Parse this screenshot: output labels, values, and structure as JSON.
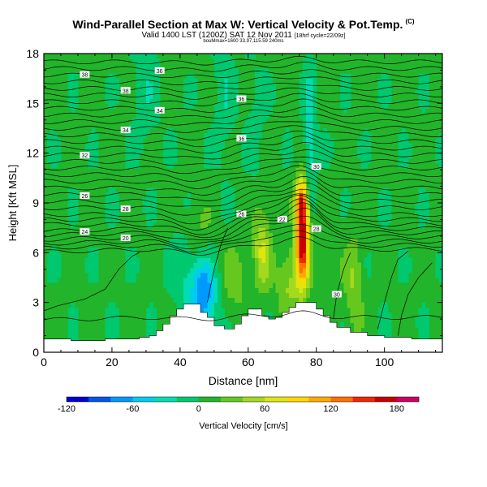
{
  "header": {
    "title": "Wind-Parallel Section at Max W: Vertical Velocity & Pot.Temp.",
    "copyright": "(C)",
    "subtitle": "Valid 1400 LST (1200Z) SAT 12 Nov 2011",
    "subtitle_small": "[18hrf cycle=22/09z]",
    "info": "bouMmax=1600 33.97,115.59 240ms"
  },
  "chart_data": {
    "type": "heatmap",
    "xlabel": "Distance [nm]",
    "ylabel": "Height [Kft MSL]",
    "xlim": [
      0,
      117
    ],
    "ylim": [
      0,
      18
    ],
    "xticks": [
      0,
      20,
      40,
      60,
      80,
      100
    ],
    "yticks": [
      0,
      3,
      6,
      9,
      12,
      15,
      18
    ],
    "colorbar": {
      "label": "Vertical Velocity [cm/s]",
      "ticks": [
        -120,
        -60,
        0,
        60,
        120,
        180
      ],
      "range": [
        -120,
        200
      ],
      "colors": [
        "#0000cc",
        "#0055ee",
        "#0099ff",
        "#00ccee",
        "#00dcb4",
        "#00c86e",
        "#22b42a",
        "#66c81e",
        "#a6d81e",
        "#dee60e",
        "#ffd800",
        "#ffaa00",
        "#ff7000",
        "#f02800",
        "#c80000",
        "#cc0066"
      ]
    },
    "background_value": 5,
    "terrain": [
      [
        0,
        0.8
      ],
      [
        8,
        0.7
      ],
      [
        18,
        0.8
      ],
      [
        28,
        0.9
      ],
      [
        31,
        1.0
      ],
      [
        33,
        1.3
      ],
      [
        35,
        1.7
      ],
      [
        37,
        2.2
      ],
      [
        39,
        2.6
      ],
      [
        41,
        2.9
      ],
      [
        44,
        2.9
      ],
      [
        46,
        2.4
      ],
      [
        48,
        2.1
      ],
      [
        50,
        1.6
      ],
      [
        53,
        1.4
      ],
      [
        56,
        1.7
      ],
      [
        58,
        2.2
      ],
      [
        60,
        2.6
      ],
      [
        62,
        2.6
      ],
      [
        64,
        2.2
      ],
      [
        66,
        2.0
      ],
      [
        68,
        2.1
      ],
      [
        70,
        2.4
      ],
      [
        72,
        2.7
      ],
      [
        74,
        3.0
      ],
      [
        78,
        3.0
      ],
      [
        80,
        2.6
      ],
      [
        82,
        2.2
      ],
      [
        84,
        1.8
      ],
      [
        86,
        1.5
      ],
      [
        90,
        1.2
      ],
      [
        95,
        1.0
      ],
      [
        100,
        0.9
      ],
      [
        108,
        0.8
      ],
      [
        117,
        0.7
      ]
    ],
    "updrafts": [
      {
        "x": 76,
        "y": 7.0,
        "sx": 1.4,
        "sy": 2.0,
        "v": 180
      },
      {
        "x": 75.5,
        "y": 9.2,
        "sx": 1.2,
        "sy": 0.8,
        "v": 70
      },
      {
        "x": 64,
        "y": 6.2,
        "sx": 1.8,
        "sy": 1.7,
        "v": 55
      },
      {
        "x": 72,
        "y": 4.2,
        "sx": 2.5,
        "sy": 1.4,
        "v": 40
      },
      {
        "x": 45,
        "y": 7.0,
        "sx": 3.0,
        "sy": 1.4,
        "v": 25
      },
      {
        "x": 56,
        "y": 4.4,
        "sx": 2.5,
        "sy": 1.5,
        "v": 25
      },
      {
        "x": 91,
        "y": 4.2,
        "sx": 1.8,
        "sy": 2.2,
        "v": 35
      },
      {
        "x": 84,
        "y": 5.0,
        "sx": 2.0,
        "sy": 1.5,
        "v": 20
      }
    ],
    "downdrafts": [
      {
        "x": 47,
        "y": 3.4,
        "sx": 2.5,
        "sy": 1.6,
        "v": -80
      },
      {
        "x": 42,
        "y": 5.0,
        "sx": 3.0,
        "sy": 1.8,
        "v": -30
      },
      {
        "x": 78,
        "y": 12.5,
        "sx": 1.2,
        "sy": 3.5,
        "v": -40
      },
      {
        "x": 30,
        "y": 16,
        "sx": 2.5,
        "sy": 2.5,
        "v": -20
      },
      {
        "x": 53,
        "y": 15.5,
        "sx": 2.0,
        "sy": 3.0,
        "v": -20
      },
      {
        "x": 62,
        "y": 14,
        "sx": 2.0,
        "sy": 2.5,
        "v": -12
      }
    ],
    "isentropes": [
      {
        "y": 2.1,
        "amp": 0.25
      },
      {
        "y": 6.2,
        "amp": 0.6
      },
      {
        "y": 6.45,
        "amp": 0.8
      },
      {
        "y": 6.7,
        "amp": 1.0,
        "label": "28"
      },
      {
        "y": 6.95,
        "amp": 1.2,
        "label": "20"
      },
      {
        "y": 7.2,
        "amp": 1.3,
        "label": "22"
      },
      {
        "y": 7.45,
        "amp": 1.3,
        "label": "24"
      },
      {
        "y": 7.7,
        "amp": 1.3
      },
      {
        "y": 8.0,
        "amp": 1.3,
        "label": "26"
      },
      {
        "y": 8.3,
        "amp": 1.2
      },
      {
        "y": 8.7,
        "amp": 1.1,
        "label": "28"
      },
      {
        "y": 9.1,
        "amp": 1.0
      },
      {
        "y": 9.5,
        "amp": 0.9,
        "label": "26"
      },
      {
        "y": 9.9,
        "amp": 0.85
      },
      {
        "y": 10.3,
        "amp": 0.8
      },
      {
        "y": 10.7,
        "amp": 0.75,
        "label": "30"
      },
      {
        "y": 11.1,
        "amp": 0.7
      },
      {
        "y": 11.5,
        "amp": 0.65
      },
      {
        "y": 11.9,
        "amp": 0.6,
        "label": "32"
      },
      {
        "y": 12.3,
        "amp": 0.55
      },
      {
        "y": 12.7,
        "amp": 0.5,
        "label": "36"
      },
      {
        "y": 13.1,
        "amp": 0.5
      },
      {
        "y": 13.5,
        "amp": 0.45,
        "label": "34"
      },
      {
        "y": 13.9,
        "amp": 0.45
      },
      {
        "y": 14.3,
        "amp": 0.4
      },
      {
        "y": 14.7,
        "amp": 0.4,
        "label": "34"
      },
      {
        "y": 15.1,
        "amp": 0.35,
        "label": "36"
      },
      {
        "y": 15.5,
        "amp": 0.35
      },
      {
        "y": 15.9,
        "amp": 0.3,
        "label": "38"
      },
      {
        "y": 16.3,
        "amp": 0.3
      },
      {
        "y": 16.7,
        "amp": 0.25,
        "label": "38"
      },
      {
        "y": 17.1,
        "amp": 0.25,
        "label": "36"
      },
      {
        "y": 17.5,
        "amp": 0.2
      }
    ],
    "low_contours": [
      {
        "points": [
          [
            0,
            2.5
          ],
          [
            4,
            2.8
          ],
          [
            8,
            3.0
          ],
          [
            12,
            3.2
          ],
          [
            18,
            3.8
          ],
          [
            22,
            5.0
          ],
          [
            26,
            5.8
          ],
          [
            28,
            6.0
          ]
        ]
      },
      {
        "points": [
          [
            48,
            3.0
          ],
          [
            50,
            5.0
          ],
          [
            52,
            6.5
          ],
          [
            54,
            7.5
          ]
        ]
      },
      {
        "points": [
          [
            85,
            2.0
          ],
          [
            86,
            3.5
          ],
          [
            88,
            5.0
          ],
          [
            90,
            6.0
          ]
        ],
        "label": "30"
      },
      {
        "points": [
          [
            98,
            1.4
          ],
          [
            100,
            3.0
          ],
          [
            102,
            4.5
          ],
          [
            104,
            5.6
          ],
          [
            107,
            6.1
          ]
        ]
      },
      {
        "points": [
          [
            104,
            1.0
          ],
          [
            105,
            2.2
          ],
          [
            107,
            3.5
          ],
          [
            110,
            4.5
          ],
          [
            114,
            5.4
          ]
        ]
      }
    ]
  }
}
